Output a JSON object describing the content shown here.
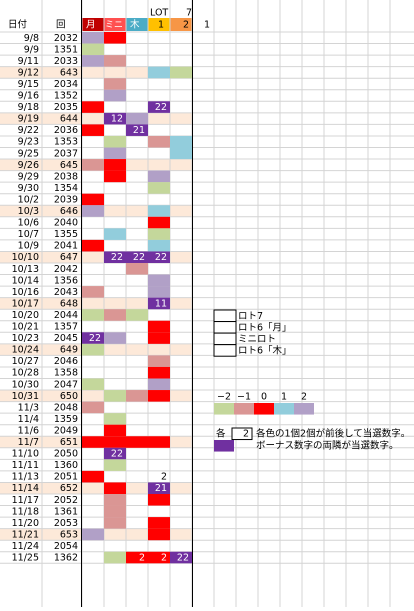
{
  "header": {
    "date": "日付",
    "round": "回",
    "mon": "月",
    "mini": "ミニ",
    "thu": "木",
    "loto7_top": "LOT",
    "loto7_top2": "7",
    "col1": "1",
    "col2": "2",
    "col3": "1"
  },
  "rows": [
    {
      "date": "9/8",
      "round": "2032",
      "cells": [
        "#b1a0c7",
        "#ff0000",
        null,
        null,
        null
      ]
    },
    {
      "date": "9/9",
      "round": "1351",
      "cells": [
        "#c4d79b",
        null,
        null,
        null,
        null
      ]
    },
    {
      "date": "9/11",
      "round": "2033",
      "cells": [
        "#b1a0c7",
        "#da9694",
        null,
        null,
        null
      ]
    },
    {
      "date": "9/12",
      "round": "643",
      "cells": [
        null,
        null,
        null,
        "#92cddc",
        "#c4d79b"
      ]
    },
    {
      "date": "9/15",
      "round": "2034",
      "cells": [
        null,
        "#da9694",
        null,
        null,
        null
      ]
    },
    {
      "date": "9/16",
      "round": "1352",
      "cells": [
        null,
        "#b1a0c7",
        null,
        null,
        null
      ]
    },
    {
      "date": "9/18",
      "round": "2035",
      "cells": [
        "#ff0000",
        null,
        null,
        {
          "color": "#7030a0",
          "text": "22"
        },
        null
      ]
    },
    {
      "date": "9/19",
      "round": "644",
      "cells": [
        null,
        {
          "color": "#7030a0",
          "text": "12"
        },
        "#b1a0c7",
        null,
        null
      ]
    },
    {
      "date": "9/22",
      "round": "2036",
      "cells": [
        "#ff0000",
        null,
        {
          "color": "#7030a0",
          "text": "21"
        },
        null,
        null
      ]
    },
    {
      "date": "9/23",
      "round": "1353",
      "cells": [
        null,
        "#c4d79b",
        null,
        "#da9694",
        "#92cddc"
      ]
    },
    {
      "date": "9/25",
      "round": "2037",
      "cells": [
        null,
        "#b1a0c7",
        null,
        null,
        "#92cddc"
      ]
    },
    {
      "date": "9/26",
      "round": "645",
      "cells": [
        "#da9694",
        "#ff0000",
        null,
        null,
        null
      ]
    },
    {
      "date": "9/29",
      "round": "2038",
      "cells": [
        null,
        "#ff0000",
        null,
        "#b1a0c7",
        null
      ]
    },
    {
      "date": "9/30",
      "round": "1354",
      "cells": [
        null,
        null,
        null,
        "#c4d79b",
        null
      ]
    },
    {
      "date": "10/2",
      "round": "2039",
      "cells": [
        "#ff0000",
        null,
        null,
        null,
        null
      ]
    },
    {
      "date": "10/3",
      "round": "646",
      "cells": [
        "#b1a0c7",
        null,
        null,
        "#92cddc",
        null
      ]
    },
    {
      "date": "10/6",
      "round": "2040",
      "cells": [
        null,
        null,
        null,
        "#ff0000",
        null
      ]
    },
    {
      "date": "10/7",
      "round": "1355",
      "cells": [
        null,
        "#92cddc",
        null,
        "#c4d79b",
        null
      ]
    },
    {
      "date": "10/9",
      "round": "2041",
      "cells": [
        "#ff0000",
        null,
        null,
        "#92cddc",
        null
      ]
    },
    {
      "date": "10/10",
      "round": "647",
      "cells": [
        null,
        {
          "color": "#7030a0",
          "text": "22"
        },
        {
          "color": "#7030a0",
          "text": "22"
        },
        {
          "color": "#7030a0",
          "text": "22"
        },
        null
      ]
    },
    {
      "date": "10/13",
      "round": "2042",
      "cells": [
        null,
        null,
        "#da9694",
        null,
        null
      ]
    },
    {
      "date": "10/14",
      "round": "1356",
      "cells": [
        null,
        null,
        null,
        "#b1a0c7",
        null
      ]
    },
    {
      "date": "10/16",
      "round": "2043",
      "cells": [
        "#da9694",
        null,
        null,
        "#b1a0c7",
        null
      ]
    },
    {
      "date": "10/17",
      "round": "648",
      "cells": [
        null,
        null,
        null,
        {
          "color": "#7030a0",
          "text": "11"
        },
        null
      ]
    },
    {
      "date": "10/20",
      "round": "2044",
      "cells": [
        "#c4d79b",
        "#da9694",
        "#c4d79b",
        null,
        null
      ]
    },
    {
      "date": "10/21",
      "round": "1357",
      "cells": [
        null,
        null,
        null,
        "#ff0000",
        null
      ]
    },
    {
      "date": "10/23",
      "round": "2045",
      "cells": [
        {
          "color": "#7030a0",
          "text": "22"
        },
        "#b1a0c7",
        null,
        "#ff0000",
        null
      ]
    },
    {
      "date": "10/24",
      "round": "649",
      "cells": [
        "#c4d79b",
        null,
        null,
        null,
        null
      ]
    },
    {
      "date": "10/27",
      "round": "2046",
      "cells": [
        null,
        null,
        null,
        "#da9694",
        null
      ]
    },
    {
      "date": "10/28",
      "round": "1358",
      "cells": [
        null,
        null,
        null,
        "#ff0000",
        null
      ]
    },
    {
      "date": "10/30",
      "round": "2047",
      "cells": [
        "#c4d79b",
        null,
        null,
        "#b1a0c7",
        null
      ]
    },
    {
      "date": "10/31",
      "round": "650",
      "cells": [
        null,
        "#c4d79b",
        "#da9694",
        "#ff0000",
        null
      ]
    },
    {
      "date": "11/3",
      "round": "2048",
      "cells": [
        "#da9694",
        null,
        null,
        null,
        null
      ]
    },
    {
      "date": "11/4",
      "round": "1359",
      "cells": [
        null,
        "#c4d79b",
        null,
        null,
        null
      ]
    },
    {
      "date": "11/6",
      "round": "2049",
      "cells": [
        null,
        "#ff0000",
        null,
        null,
        null
      ]
    },
    {
      "date": "11/7",
      "round": "651",
      "cells": [
        "#ff0000",
        "#ff0000",
        "#ff0000",
        "#ff0000",
        null
      ]
    },
    {
      "date": "11/10",
      "round": "2050",
      "cells": [
        null,
        {
          "color": "#7030a0",
          "text": "22"
        },
        null,
        null,
        null
      ]
    },
    {
      "date": "11/11",
      "round": "1360",
      "cells": [
        null,
        "#c4d79b",
        null,
        null,
        null
      ]
    },
    {
      "date": "11/13",
      "round": "2051",
      "cells": [
        "#ff0000",
        null,
        null,
        {
          "color": null,
          "text": "2"
        },
        null
      ]
    },
    {
      "date": "11/14",
      "round": "652",
      "cells": [
        null,
        "#ff0000",
        null,
        {
          "color": "#7030a0",
          "text": "21"
        },
        null
      ]
    },
    {
      "date": "11/17",
      "round": "2052",
      "cells": [
        null,
        "#da9694",
        null,
        "#ff0000",
        null
      ]
    },
    {
      "date": "11/18",
      "round": "1361",
      "cells": [
        null,
        "#da9694",
        null,
        null,
        null
      ]
    },
    {
      "date": "11/20",
      "round": "2053",
      "cells": [
        null,
        "#da9694",
        null,
        "#ff0000",
        null
      ]
    },
    {
      "date": "11/21",
      "round": "653",
      "cells": [
        "#b1a0c7",
        null,
        null,
        "#ff0000",
        null
      ]
    },
    {
      "date": "11/24",
      "round": "2054",
      "cells": [
        null,
        null,
        null,
        null,
        null
      ]
    },
    {
      "date": "11/25",
      "round": "1362",
      "cells": [
        null,
        "#c4d79b",
        {
          "color": "#ff0000",
          "text": "2"
        },
        {
          "color": "#ff0000",
          "text": "2"
        },
        {
          "color": "#7030a0",
          "text": "22"
        }
      ]
    }
  ],
  "legend": [
    "ロト7",
    "ロト6「月」",
    "ミニロト",
    "ロト6「木」"
  ],
  "scale": [
    {
      "label": "−2",
      "color": "#c4d79b"
    },
    {
      "label": "−1",
      "color": "#da9694"
    },
    {
      "label": "0",
      "color": "#ff0000"
    },
    {
      "label": "1",
      "color": "#92cddc"
    },
    {
      "label": "2",
      "color": "#b1a0c7"
    }
  ],
  "notes": {
    "prefix": "各",
    "box": "2",
    "line1": "各色の1個2個が前後して当選数字。",
    "bonus_color": "#7030a0",
    "line2": "ボーナス数字の両隣が当選数字。"
  }
}
